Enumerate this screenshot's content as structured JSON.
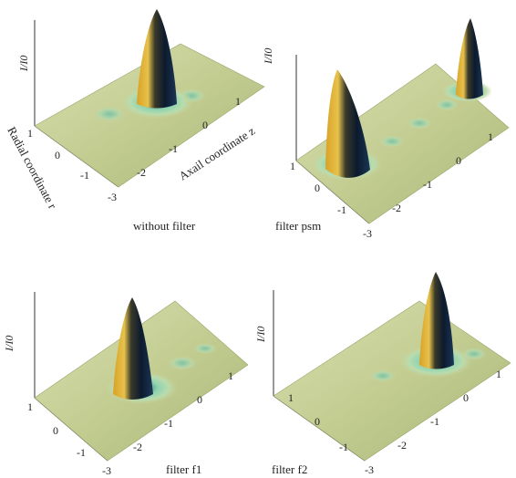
{
  "chart_data": [
    {
      "type": "surface3d",
      "title": "without filter",
      "xlabel": "Axail coordinate z",
      "ylabel": "Radial coordinate r",
      "zlabel": "I/I0",
      "z_ticks": [
        "-3",
        "-2",
        "-1",
        "0",
        "1"
      ],
      "r_ticks": [
        "1",
        "0",
        "-1"
      ],
      "peaks": [
        {
          "z": 0.0,
          "r": 0.0,
          "height": 1.0
        }
      ],
      "colors": {
        "surface": "#c9d39a",
        "peak_light": "#e0a82a",
        "peak_dark": "#0e1e33",
        "ring": "#7fc7a4"
      }
    },
    {
      "type": "surface3d",
      "title": "filter psm",
      "z_ticks": [
        "-3",
        "-2",
        "-1",
        "0",
        "1"
      ],
      "r_ticks": [
        "1",
        "0",
        "-1"
      ],
      "peaks": [
        {
          "z": -2.2,
          "r": 0.0,
          "height": 1.0
        },
        {
          "z": 0.9,
          "r": 0.0,
          "height": 1.0
        }
      ]
    },
    {
      "type": "surface3d",
      "title": "filter f1",
      "z_ticks": [
        "-3",
        "-2",
        "-1",
        "0",
        "1"
      ],
      "r_ticks": [
        "1",
        "0",
        "-1"
      ],
      "peaks": [
        {
          "z": -1.6,
          "r": 0.0,
          "height": 1.0
        }
      ]
    },
    {
      "type": "surface3d",
      "title": "filter f2",
      "z_ticks": [
        "-3",
        "-2",
        "-1",
        "0",
        "1"
      ],
      "r_ticks": [
        "1",
        "0",
        "-1"
      ],
      "peaks": [
        {
          "z": 0.0,
          "r": 0.0,
          "height": 1.0
        }
      ]
    }
  ]
}
